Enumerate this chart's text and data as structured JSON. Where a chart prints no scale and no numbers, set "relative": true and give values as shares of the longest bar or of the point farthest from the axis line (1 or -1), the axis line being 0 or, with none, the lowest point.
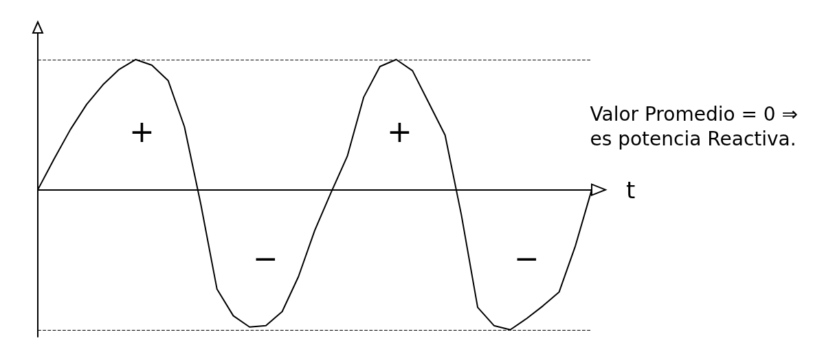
{
  "chart_data": {
    "type": "line",
    "relative": true,
    "xlabel": "t",
    "color": "#000000",
    "marker": "none",
    "line_style": "solid",
    "grid": false,
    "categories": [
      null,
      null,
      null,
      null,
      null,
      null,
      null,
      null,
      null,
      null,
      null,
      null,
      null,
      null,
      null,
      null,
      null,
      null,
      null,
      null,
      null,
      null,
      null,
      null,
      null,
      null,
      null,
      null,
      null,
      null,
      null,
      null,
      null,
      null,
      null
    ],
    "values": [
      0,
      0.22,
      0.43,
      0.61,
      0.75,
      0.86,
      0.93,
      0.89,
      0.78,
      0.45,
      -0.1,
      -0.71,
      -0.9,
      -0.98,
      -0.97,
      -0.87,
      -0.62,
      -0.29,
      -0.02,
      0.24,
      0.66,
      0.88,
      0.93,
      0.85,
      0.62,
      0.39,
      -0.18,
      -0.84,
      -0.97,
      -1,
      -0.92,
      -0.83,
      -0.73,
      -0.4,
      0
    ],
    "ref_lines": [
      {
        "axis": "y",
        "value": 0.93,
        "line_style": "dashed"
      },
      {
        "axis": "y",
        "value": -1,
        "line_style": "dashed"
      }
    ],
    "annotations": [
      "+",
      "−",
      "+",
      "−",
      "Valor Promedio = 0 ⇒\nes potencia Reactiva."
    ]
  }
}
